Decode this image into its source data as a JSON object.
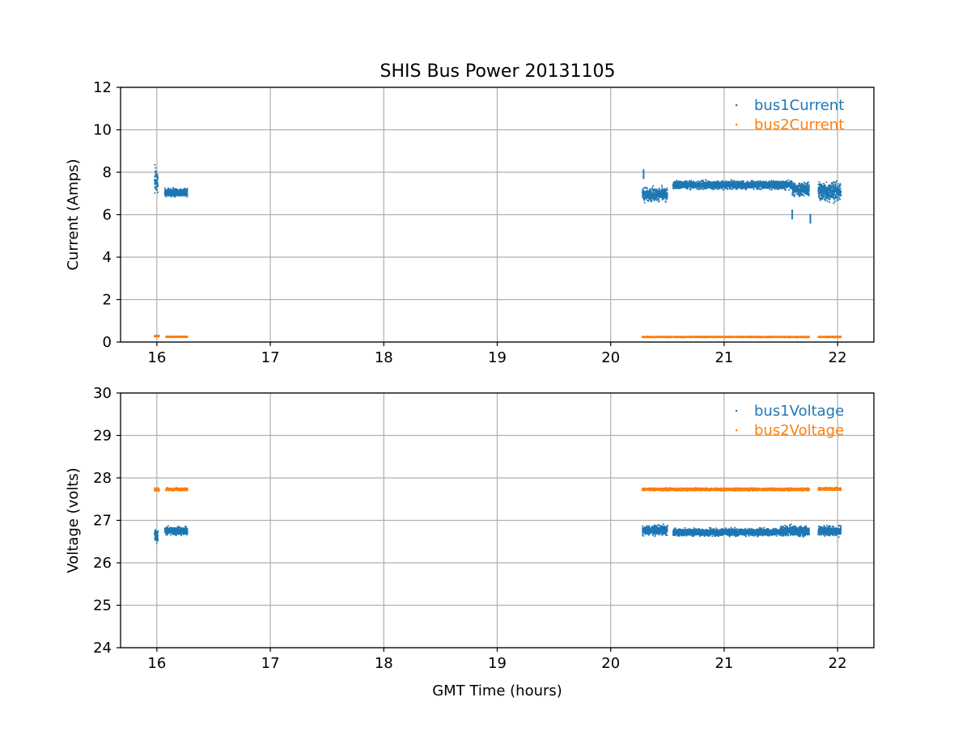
{
  "figure": {
    "title": "SHIS Bus Power 20131105"
  },
  "colors": {
    "series1": "#1f77b4",
    "series2": "#ff7f0e",
    "grid": "#b0b0b0",
    "axis": "#000000"
  },
  "chart_data": [
    {
      "type": "scatter",
      "title": "SHIS Bus Power 20131105",
      "xlabel": "",
      "ylabel": "Current (Amps)",
      "xlim": [
        15.68,
        22.32
      ],
      "ylim": [
        0,
        12
      ],
      "xticks": [
        16,
        17,
        18,
        19,
        20,
        21,
        22
      ],
      "yticks": [
        0,
        2,
        4,
        6,
        8,
        10,
        12
      ],
      "grid": true,
      "legend_position": "top-right",
      "series": [
        {
          "name": "bus1Current",
          "color": "#1f77b4",
          "segments": [
            {
              "x_start": 15.98,
              "x_end": 16.01,
              "y_center": 7.6,
              "spread": 1.6
            },
            {
              "x_start": 16.07,
              "x_end": 16.27,
              "y_center": 7.05,
              "spread": 0.5
            },
            {
              "x_start": 20.28,
              "x_end": 20.5,
              "y_center": 6.95,
              "spread": 0.8
            },
            {
              "x_start": 20.55,
              "x_end": 21.6,
              "y_center": 7.4,
              "spread": 0.5
            },
            {
              "x_start": 21.6,
              "x_end": 21.75,
              "y_center": 7.2,
              "spread": 0.9
            },
            {
              "x_start": 21.83,
              "x_end": 22.03,
              "y_center": 7.1,
              "spread": 1.2
            }
          ],
          "outliers": [
            {
              "x": 20.29,
              "y": 8.1
            },
            {
              "x": 21.6,
              "y": 6.2
            },
            {
              "x": 21.76,
              "y": 6.0
            }
          ]
        },
        {
          "name": "bus2Current",
          "color": "#ff7f0e",
          "segments": [
            {
              "x_start": 15.98,
              "x_end": 16.02,
              "y_center": 0.28,
              "spread": 0.08
            },
            {
              "x_start": 16.08,
              "x_end": 16.27,
              "y_center": 0.25,
              "spread": 0.06
            },
            {
              "x_start": 20.28,
              "x_end": 21.75,
              "y_center": 0.24,
              "spread": 0.06
            },
            {
              "x_start": 21.83,
              "x_end": 22.03,
              "y_center": 0.24,
              "spread": 0.06
            }
          ],
          "outliers": []
        }
      ]
    },
    {
      "type": "scatter",
      "title": "",
      "xlabel": "GMT Time (hours)",
      "ylabel": "Voltage (volts)",
      "xlim": [
        15.68,
        22.32
      ],
      "ylim": [
        24,
        30
      ],
      "xticks": [
        16,
        17,
        18,
        19,
        20,
        21,
        22
      ],
      "yticks": [
        24,
        25,
        26,
        27,
        28,
        29,
        30
      ],
      "grid": true,
      "legend_position": "top-right",
      "series": [
        {
          "name": "bus1Voltage",
          "color": "#1f77b4",
          "segments": [
            {
              "x_start": 15.98,
              "x_end": 16.01,
              "y_center": 26.65,
              "spread": 0.4
            },
            {
              "x_start": 16.07,
              "x_end": 16.27,
              "y_center": 26.75,
              "spread": 0.25
            },
            {
              "x_start": 20.28,
              "x_end": 20.5,
              "y_center": 26.77,
              "spread": 0.28
            },
            {
              "x_start": 20.55,
              "x_end": 21.5,
              "y_center": 26.72,
              "spread": 0.22
            },
            {
              "x_start": 21.5,
              "x_end": 21.75,
              "y_center": 26.75,
              "spread": 0.3
            },
            {
              "x_start": 21.83,
              "x_end": 22.03,
              "y_center": 26.75,
              "spread": 0.3
            }
          ],
          "outliers": []
        },
        {
          "name": "bus2Voltage",
          "color": "#ff7f0e",
          "segments": [
            {
              "x_start": 15.98,
              "x_end": 16.02,
              "y_center": 27.73,
              "spread": 0.1
            },
            {
              "x_start": 16.08,
              "x_end": 16.27,
              "y_center": 27.73,
              "spread": 0.08
            },
            {
              "x_start": 20.28,
              "x_end": 21.75,
              "y_center": 27.73,
              "spread": 0.08
            },
            {
              "x_start": 21.83,
              "x_end": 22.03,
              "y_center": 27.74,
              "spread": 0.08
            }
          ],
          "outliers": []
        }
      ]
    }
  ]
}
